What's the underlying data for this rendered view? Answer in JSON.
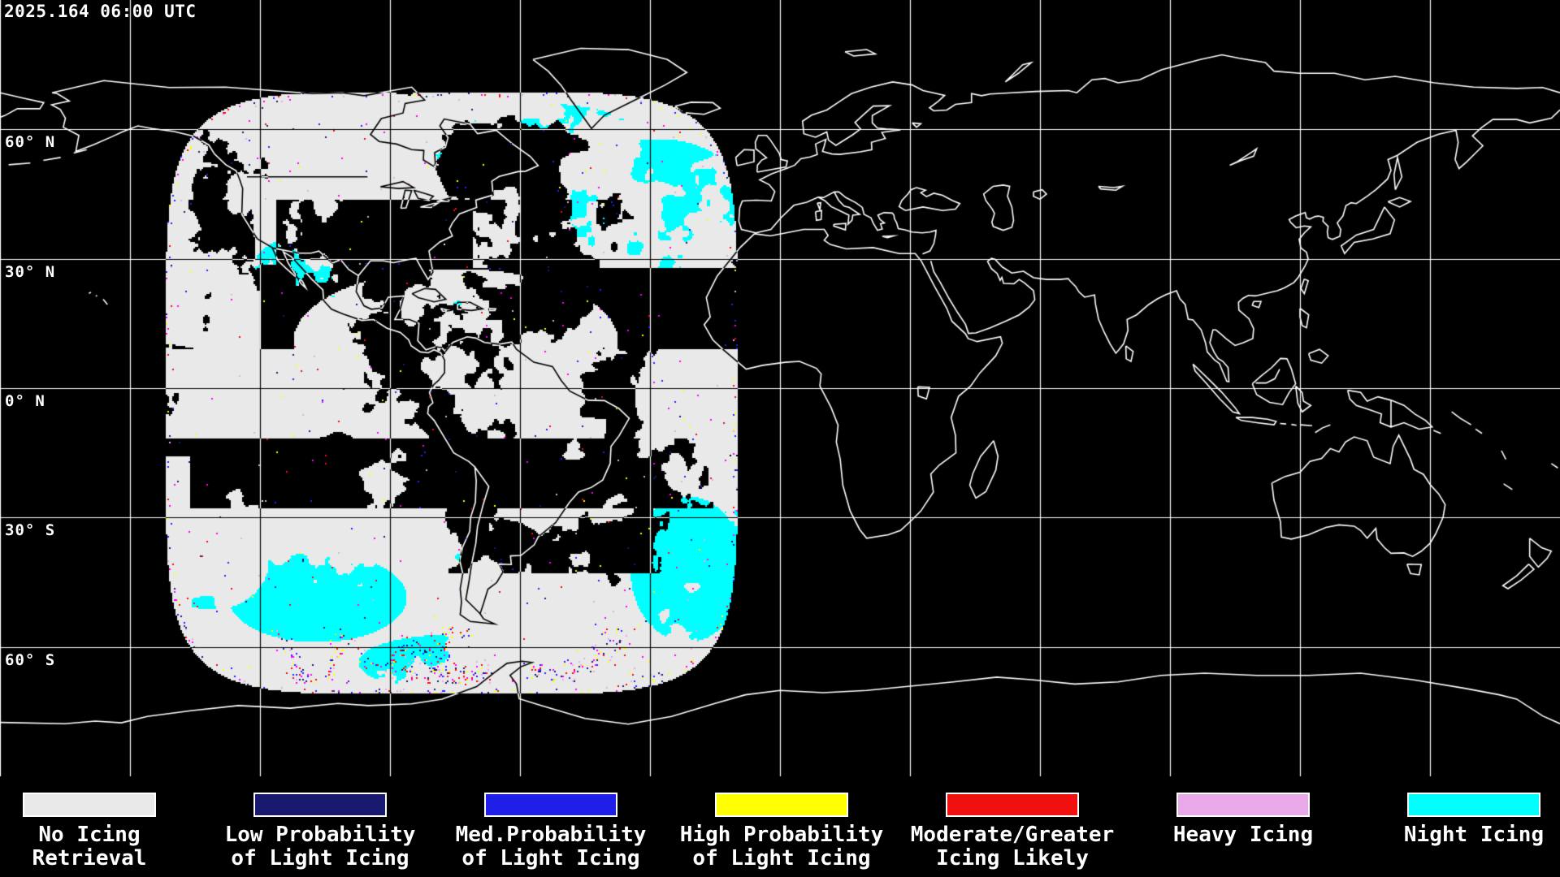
{
  "timestamp": "2025.164 06:00 UTC",
  "map": {
    "background_color": "#000000",
    "coastline_color": "#ffffff",
    "grid_color": "#ffffff",
    "longitude_step_deg": 30,
    "latitude_step_deg": 30,
    "latitude_lines": [
      {
        "label": "60° N",
        "lat": 60
      },
      {
        "label": "30° N",
        "lat": 30
      },
      {
        "label": "0° N",
        "lat": 0
      },
      {
        "label": "30° S",
        "lat": -30
      },
      {
        "label": "60° S",
        "lat": -60
      }
    ]
  },
  "satellite_coverage": {
    "no_icing_color": "#e9e9e9",
    "night_icing_color": "#00ffff",
    "speckle_colors": [
      "#f01010",
      "#ffff00",
      "#2121ff",
      "#e9a9e9",
      "#191970",
      "#ff00ff"
    ]
  },
  "legend": {
    "items": [
      {
        "name": "no-icing-retrieval",
        "color": "#e9e9e9",
        "lines": [
          "No Icing",
          "Retrieval"
        ]
      },
      {
        "name": "low-prob-light-icing",
        "color": "#191970",
        "lines": [
          "Low Probability",
          "of Light Icing"
        ]
      },
      {
        "name": "med-prob-light-icing",
        "color": "#1f1fe8",
        "lines": [
          "Med.Probability",
          "of Light Icing"
        ]
      },
      {
        "name": "high-prob-light-icing",
        "color": "#ffff00",
        "lines": [
          "High Probability",
          "of Light Icing"
        ]
      },
      {
        "name": "moderate-greater-icing",
        "color": "#f01010",
        "lines": [
          "Moderate/Greater",
          "Icing Likely"
        ]
      },
      {
        "name": "heavy-icing",
        "color": "#e9a9e9",
        "lines": [
          "Heavy Icing"
        ]
      },
      {
        "name": "night-icing",
        "color": "#00ffff",
        "lines": [
          "Night Icing"
        ]
      }
    ]
  }
}
